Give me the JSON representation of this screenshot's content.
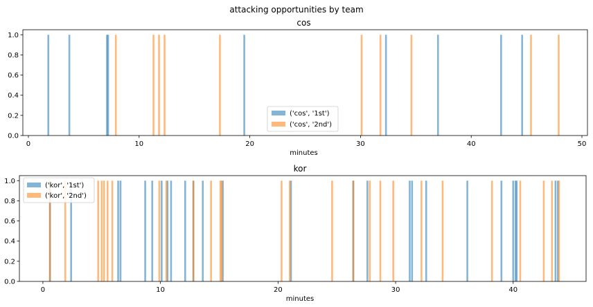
{
  "figure": {
    "suptitle": "attacking opportunities by team"
  },
  "colors": {
    "first_half": "#1f77b4",
    "second_half": "#ff7f0e",
    "first_half_alpha": 0.55,
    "second_half_alpha": 0.55
  },
  "chart_data": [
    {
      "type": "bar",
      "title": "cos",
      "xlabel": "minutes",
      "ylabel": "",
      "xlim": [
        -0.5,
        50.5
      ],
      "ylim": [
        0,
        1.05
      ],
      "xticks": [
        0,
        10,
        20,
        30,
        40,
        50
      ],
      "yticks": [
        "0.0",
        "0.2",
        "0.4",
        "0.6",
        "0.8",
        "1.0"
      ],
      "legend_position": "lower-center",
      "series": [
        {
          "name": "('cos', '1st')",
          "x": [
            1.8,
            3.7,
            7.1,
            7.2,
            19.5,
            32.3,
            37.0,
            42.7,
            44.6
          ],
          "values": [
            1,
            1,
            1,
            1,
            1,
            1,
            1,
            1,
            1
          ]
        },
        {
          "name": "('cos', '2nd')",
          "x": [
            7.9,
            11.3,
            11.8,
            12.3,
            17.3,
            30.1,
            31.8,
            34.6,
            45.4,
            47.9
          ],
          "values": [
            1,
            1,
            1,
            1,
            1,
            1,
            1,
            1,
            1,
            1
          ]
        }
      ]
    },
    {
      "type": "bar",
      "title": "kor",
      "xlabel": "minutes",
      "ylabel": "",
      "xlim": [
        -2.0,
        46.2
      ],
      "ylim": [
        0,
        1.05
      ],
      "xticks": [
        0,
        10,
        20,
        30,
        40
      ],
      "yticks": [
        "0.0",
        "0.2",
        "0.4",
        "0.6",
        "0.8",
        "1.0"
      ],
      "legend_position": "upper-left",
      "series": [
        {
          "name": "('kor', '1st')",
          "x": [
            0.6,
            2.4,
            6.4,
            6.6,
            8.7,
            9.3,
            10.1,
            10.6,
            10.9,
            12.1,
            12.8,
            13.6,
            15.3,
            21.1,
            26.4,
            27.6,
            31.2,
            31.4,
            32.6,
            36.1,
            39.0,
            40.0,
            40.2,
            40.3,
            43.6,
            43.8
          ],
          "values": [
            1,
            1,
            1,
            1,
            1,
            1,
            1,
            1,
            1,
            1,
            1,
            1,
            1,
            1,
            1,
            1,
            1,
            1,
            1,
            1,
            1,
            1,
            1,
            1,
            1,
            1
          ]
        },
        {
          "name": "('kor', '2nd')",
          "x": [
            0.6,
            1.9,
            4.7,
            5.0,
            5.2,
            5.5,
            5.9,
            9.9,
            10.5,
            12.8,
            14.3,
            15.1,
            15.2,
            20.3,
            21.0,
            24.6,
            26.4,
            27.8,
            28.7,
            29.8,
            32.2,
            34.0,
            38.2,
            40.6,
            42.6,
            43.3,
            43.9
          ],
          "values": [
            1,
            1,
            1,
            1,
            1,
            1,
            1,
            1,
            1,
            1,
            1,
            1,
            1,
            1,
            1,
            1,
            1,
            1,
            1,
            1,
            1,
            1,
            1,
            1,
            1,
            1,
            1
          ]
        }
      ]
    }
  ]
}
